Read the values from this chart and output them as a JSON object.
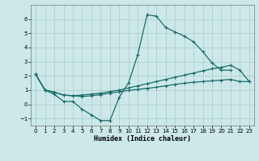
{
  "xlabel": "Humidex (Indice chaleur)",
  "bg_color": "#cce8e8",
  "grid_color": "#aacccc",
  "line_color": "#1a6b6b",
  "xlim": [
    -0.5,
    23.5
  ],
  "ylim": [
    -1.5,
    7.0
  ],
  "yticks": [
    -1,
    0,
    1,
    2,
    3,
    4,
    5,
    6
  ],
  "xticks": [
    0,
    1,
    2,
    3,
    4,
    5,
    6,
    7,
    8,
    9,
    10,
    11,
    12,
    13,
    14,
    15,
    16,
    17,
    18,
    19,
    20,
    21,
    22,
    23
  ],
  "line1_x": [
    0,
    1,
    2,
    3,
    4,
    5,
    6,
    7,
    8,
    9,
    10,
    11,
    12,
    13,
    14,
    15,
    16,
    17,
    18,
    19,
    20,
    21
  ],
  "line1_y": [
    2.1,
    1.0,
    0.7,
    0.2,
    0.2,
    -0.35,
    -0.75,
    -1.15,
    -1.15,
    0.5,
    1.5,
    3.5,
    6.3,
    6.2,
    5.4,
    5.1,
    4.8,
    4.4,
    3.7,
    2.9,
    2.4,
    2.4
  ],
  "line2_x": [
    0,
    1,
    2,
    3,
    4,
    5,
    6,
    7,
    8,
    9,
    10,
    11,
    12,
    13,
    14,
    15,
    16,
    17,
    18,
    19,
    20,
    21,
    22,
    23
  ],
  "line2_y": [
    2.1,
    1.0,
    0.85,
    0.65,
    0.6,
    0.65,
    0.72,
    0.78,
    0.9,
    1.0,
    1.15,
    1.3,
    1.45,
    1.6,
    1.75,
    1.9,
    2.05,
    2.2,
    2.35,
    2.5,
    2.6,
    2.75,
    2.4,
    1.6
  ],
  "line3_x": [
    0,
    1,
    2,
    3,
    4,
    5,
    6,
    7,
    8,
    9,
    10,
    11,
    12,
    13,
    14,
    15,
    16,
    17,
    18,
    19,
    20,
    21,
    22,
    23
  ],
  "line3_y": [
    2.1,
    1.0,
    0.85,
    0.65,
    0.6,
    0.55,
    0.6,
    0.68,
    0.78,
    0.88,
    0.98,
    1.05,
    1.12,
    1.2,
    1.3,
    1.4,
    1.48,
    1.55,
    1.6,
    1.65,
    1.7,
    1.75,
    1.6,
    1.6
  ]
}
